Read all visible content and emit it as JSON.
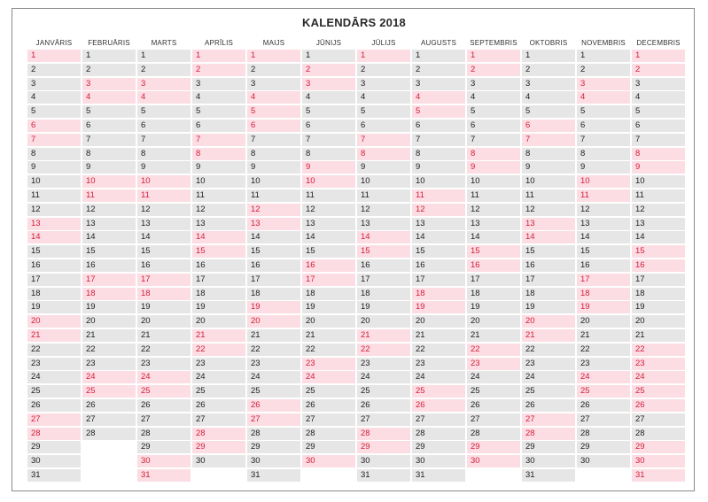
{
  "title": "KALENDĀRS 2018",
  "colors": {
    "weekday_bg": "#e6e6e6",
    "weekend_bg": "#fbdde3",
    "weekend_text": "#d51d3a",
    "weekday_text": "#1e1e1e"
  },
  "months": [
    {
      "name": "JANVĀRIS",
      "days": 31,
      "weekend_days": [
        1,
        6,
        7,
        13,
        14,
        20,
        21,
        27,
        28
      ]
    },
    {
      "name": "FEBRUĀRIS",
      "days": 28,
      "weekend_days": [
        3,
        4,
        10,
        11,
        17,
        18,
        24,
        25
      ]
    },
    {
      "name": "MARTS",
      "days": 31,
      "weekend_days": [
        3,
        4,
        10,
        11,
        17,
        18,
        24,
        25,
        30,
        31
      ]
    },
    {
      "name": "APRĪLIS",
      "days": 30,
      "weekend_days": [
        1,
        2,
        7,
        8,
        14,
        15,
        21,
        22,
        28,
        29
      ]
    },
    {
      "name": "MAIJS",
      "days": 31,
      "weekend_days": [
        1,
        4,
        5,
        6,
        12,
        13,
        19,
        20,
        26,
        27
      ]
    },
    {
      "name": "JŪNIJS",
      "days": 30,
      "weekend_days": [
        2,
        3,
        9,
        10,
        16,
        17,
        23,
        24,
        30
      ]
    },
    {
      "name": "JŪLIJS",
      "days": 31,
      "weekend_days": [
        1,
        7,
        8,
        14,
        15,
        21,
        22,
        28,
        29
      ]
    },
    {
      "name": "AUGUSTS",
      "days": 31,
      "weekend_days": [
        4,
        5,
        11,
        12,
        18,
        19,
        25,
        26
      ]
    },
    {
      "name": "SEPTEMBRIS",
      "days": 30,
      "weekend_days": [
        1,
        2,
        8,
        9,
        15,
        16,
        22,
        23,
        29,
        30
      ]
    },
    {
      "name": "OKTOBRIS",
      "days": 31,
      "weekend_days": [
        6,
        7,
        13,
        14,
        20,
        21,
        27,
        28
      ]
    },
    {
      "name": "NOVEMBRIS",
      "days": 30,
      "weekend_days": [
        3,
        4,
        10,
        11,
        17,
        18,
        19,
        24,
        25
      ]
    },
    {
      "name": "DECEMBRIS",
      "days": 31,
      "weekend_days": [
        1,
        2,
        8,
        9,
        15,
        16,
        22,
        23,
        24,
        25,
        26,
        29,
        30,
        31
      ]
    }
  ]
}
